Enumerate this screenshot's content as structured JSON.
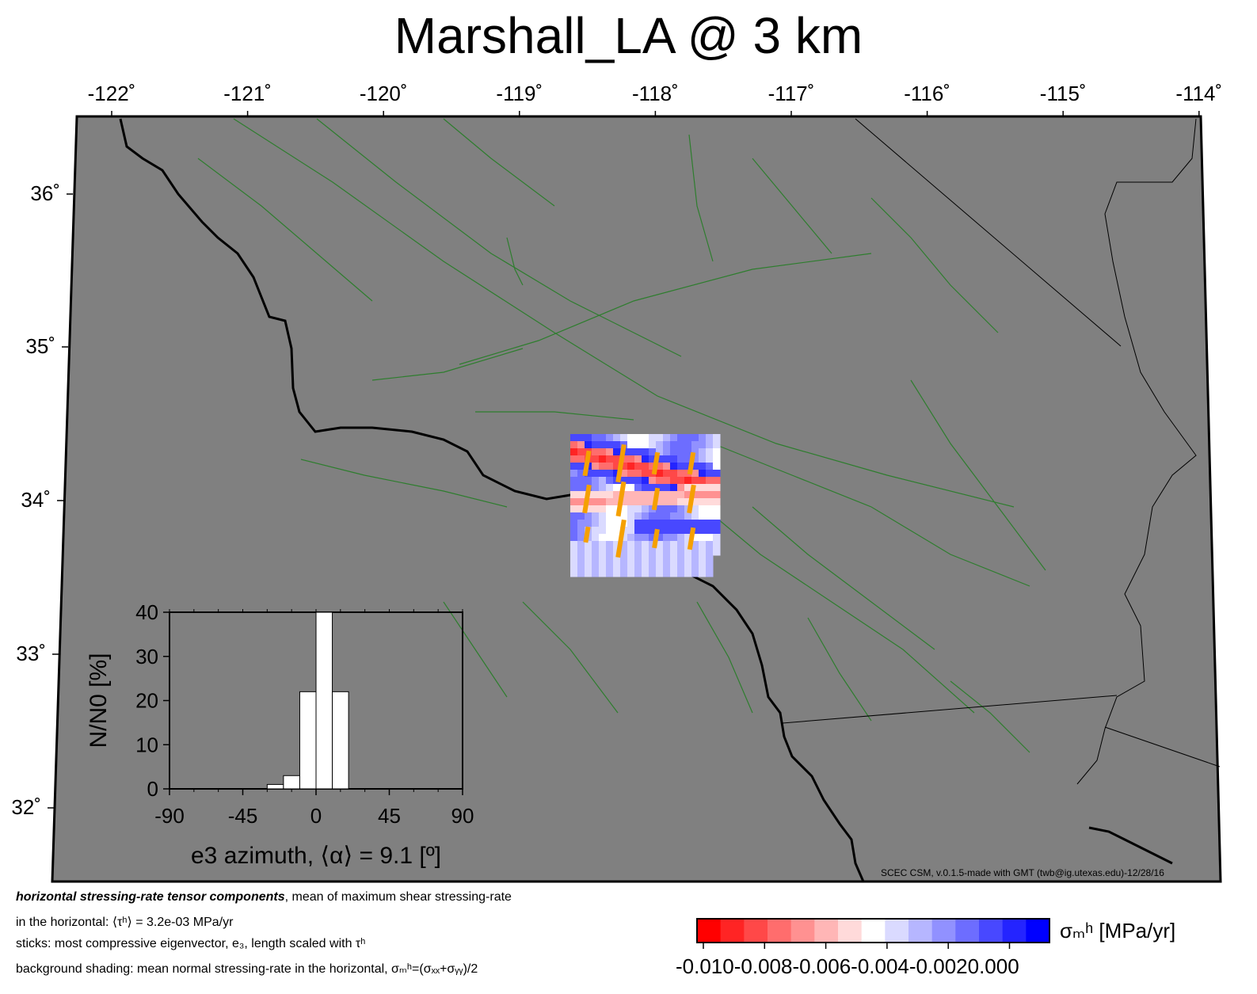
{
  "title": "Marshall_LA @ 3 km",
  "map": {
    "lon_ticks": [
      "-122˚",
      "-121˚",
      "-120˚",
      "-119˚",
      "-118˚",
      "-117˚",
      "-116˚",
      "-115˚",
      "-114˚"
    ],
    "lat_ticks": [
      "36˚",
      "35˚",
      "34˚",
      "33˚",
      "32˚"
    ],
    "credit": "SCEC CSM, v.0.1.5-made with GMT (twb@ig.utexas.edu)-12/28/16",
    "colors": {
      "land": "#808080",
      "faults": "#2e7d2e",
      "coast": "#000000",
      "sticks": "#f5a000"
    }
  },
  "chart_data": {
    "type": "bar",
    "x": [
      -25,
      -15,
      -5,
      5,
      15,
      25
    ],
    "values": [
      1,
      3,
      22,
      40,
      22,
      0
    ],
    "xlabel": "e3 azimuth, ⟨α⟩ = 9.1 [º]",
    "ylabel": "N/N0 [%]",
    "xlim": [
      -90,
      90
    ],
    "ylim": [
      0,
      40
    ],
    "x_ticks": [
      "-90",
      "-45",
      "0",
      "45",
      "90"
    ],
    "y_ticks": [
      "0",
      "10",
      "20",
      "30",
      "40"
    ]
  },
  "caption": {
    "line1_bold": "horizontal stressing-rate tensor components",
    "line1_rest": ", mean of maximum shear stressing-rate",
    "line2": "in the horizontal: ⟨τʰ⟩ = 3.2e-03 MPa/yr",
    "line3": "sticks: most compressive eigenvector, e₃, length scaled with τʰ",
    "line4": "background shading: mean normal stressing-rate in the horizontal, σₘʰ=(σₓₓ+σᵧᵧ)/2"
  },
  "colorbar": {
    "label": "σₘʰ [MPa/yr]",
    "ticks": "-0.010-0.008-0.006-0.004-0.0020.000",
    "colors": [
      "#ff0000",
      "#ff2424",
      "#ff4848",
      "#ff6d6d",
      "#ff9191",
      "#ffb6b6",
      "#ffdada",
      "#ffffff",
      "#dadaff",
      "#b6b6ff",
      "#9191ff",
      "#6d6dff",
      "#4848ff",
      "#2424ff",
      "#0000ff"
    ]
  }
}
